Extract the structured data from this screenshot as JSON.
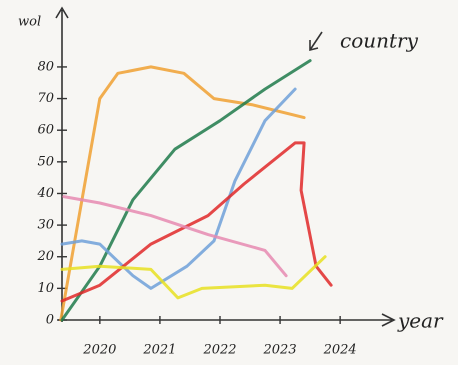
{
  "chart_data": {
    "type": "line",
    "y_label": "wol",
    "x_label": "year",
    "annotation": "country",
    "xlim": [
      2019.37,
      2024.83
    ],
    "ylim": [
      0,
      98
    ],
    "xticks": [
      2020,
      2021,
      2022,
      2023,
      2024
    ],
    "yticks": [
      0,
      10,
      20,
      30,
      40,
      50,
      60,
      70,
      80
    ],
    "series": [
      {
        "color": "#f0a030",
        "x": [
          2019.35,
          2020,
          2020.3,
          2020.85,
          2021.4,
          2021.9,
          2022.55,
          2023.4
        ],
        "values": [
          0,
          70,
          78,
          80,
          78,
          70,
          68,
          64
        ]
      },
      {
        "color": "#1f7a4a",
        "x": [
          2019.37,
          2020,
          2020.55,
          2021.25,
          2022,
          2022.75,
          2023.5
        ],
        "values": [
          0,
          17,
          38,
          54,
          63,
          73,
          82
        ]
      },
      {
        "color": "#6fa0d8",
        "x": [
          2019.37,
          2019.7,
          2020,
          2020.55,
          2020.85,
          2021.45,
          2021.9,
          2022.25,
          2022.75,
          2023.25
        ],
        "values": [
          24,
          25,
          24,
          14,
          10,
          17,
          25,
          44,
          63,
          73
        ]
      },
      {
        "color": "#e02828",
        "x": [
          2019.37,
          2020,
          2020.85,
          2021.8,
          2022.4,
          2023.25,
          2023.4,
          2023.35,
          2023.6,
          2023.85
        ],
        "values": [
          6,
          11,
          24,
          33,
          43,
          56,
          56,
          41,
          17,
          11
        ]
      },
      {
        "color": "#e68ab0",
        "x": [
          2019.4,
          2020,
          2020.85,
          2021.8,
          2022.75,
          2023.1
        ],
        "values": [
          39,
          37,
          33,
          27,
          22,
          14
        ]
      },
      {
        "color": "#e8e020",
        "x": [
          2019.37,
          2020,
          2020.85,
          2021.3,
          2021.7,
          2022.75,
          2023.2,
          2023.75
        ],
        "values": [
          16,
          17,
          16,
          7,
          10,
          11,
          10,
          20
        ]
      }
    ]
  }
}
